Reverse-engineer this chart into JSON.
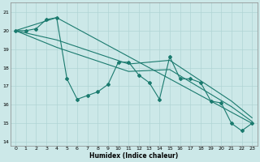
{
  "xlabel": "Humidex (Indice chaleur)",
  "xlim": [
    -0.5,
    23.5
  ],
  "ylim": [
    13.8,
    21.5
  ],
  "yticks": [
    14,
    15,
    16,
    17,
    18,
    19,
    20,
    21
  ],
  "xticks": [
    0,
    1,
    2,
    3,
    4,
    5,
    6,
    7,
    8,
    9,
    10,
    11,
    12,
    13,
    14,
    15,
    16,
    17,
    18,
    19,
    20,
    21,
    22,
    23
  ],
  "line_color": "#1a7a6e",
  "bg_color": "#cce8e8",
  "grid_color": "#b0d4d4",
  "line1_x": [
    0,
    1,
    2,
    3,
    4,
    5,
    6,
    7,
    8,
    9,
    10,
    11,
    12,
    13,
    14,
    15,
    16,
    17,
    18,
    19,
    20,
    21,
    22,
    23
  ],
  "line1_y": [
    20.0,
    20.0,
    20.1,
    20.6,
    20.7,
    17.4,
    16.3,
    16.5,
    16.7,
    17.1,
    18.3,
    18.3,
    17.6,
    17.2,
    16.3,
    18.6,
    17.4,
    17.4,
    17.2,
    16.2,
    16.1,
    15.0,
    14.6,
    15.0
  ],
  "line2_x": [
    0,
    4,
    23
  ],
  "line2_y": [
    20.0,
    20.7,
    15.0
  ],
  "line3_x": [
    0,
    4,
    11,
    15,
    21,
    23
  ],
  "line3_y": [
    20.0,
    19.5,
    18.2,
    18.4,
    16.2,
    15.3
  ],
  "line4_x": [
    0,
    4,
    11,
    15,
    21,
    23
  ],
  "line4_y": [
    20.0,
    19.1,
    17.8,
    17.9,
    15.9,
    15.1
  ]
}
